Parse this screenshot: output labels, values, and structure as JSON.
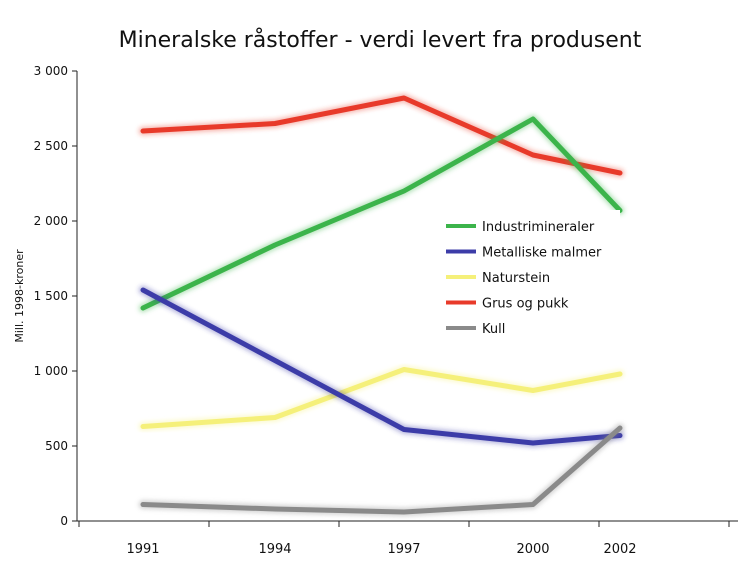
{
  "chart_data": {
    "type": "line",
    "title": "Mineralske råstoffer - verdi levert fra produsent",
    "xlabel": "",
    "ylabel": "Mill. 1998-kroner",
    "x": [
      "1991",
      "1994",
      "1997",
      "2000",
      "2002"
    ],
    "ylim": [
      0,
      3000
    ],
    "yticks": [
      "0",
      "500",
      "1 000",
      "1 500",
      "2 000",
      "2 500",
      "3 000"
    ],
    "legend_position": "center-right",
    "grid": false,
    "series": [
      {
        "name": "Industrimineraler",
        "color": "#3cb44b",
        "values": [
          1420,
          1840,
          2200,
          2680,
          2070
        ]
      },
      {
        "name": "Metalliske malmer",
        "color": "#3c3ca8",
        "values": [
          1540,
          1070,
          610,
          520,
          570
        ]
      },
      {
        "name": "Naturstein",
        "color": "#f5f07a",
        "values": [
          630,
          690,
          1010,
          870,
          980
        ]
      },
      {
        "name": "Grus og pukk",
        "color": "#e83a2a",
        "values": [
          2600,
          2650,
          2820,
          2440,
          2320
        ]
      },
      {
        "name": "Kull",
        "color": "#8a8a8a",
        "values": [
          110,
          80,
          60,
          110,
          620
        ]
      }
    ]
  }
}
